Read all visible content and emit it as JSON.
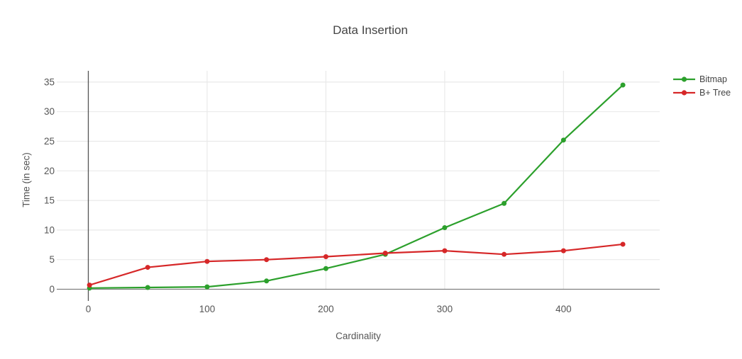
{
  "title": "Data Insertion",
  "chart_data": {
    "type": "line",
    "title": "Data Insertion",
    "xlabel": "Cardinality",
    "ylabel": "Time (in sec)",
    "x": [
      1,
      50,
      100,
      150,
      200,
      250,
      300,
      350,
      400,
      450
    ],
    "series": [
      {
        "name": "Bitmap",
        "color": "#2ca02c",
        "values": [
          0.2,
          0.3,
          0.4,
          1.4,
          3.5,
          5.9,
          10.4,
          14.5,
          25.2,
          34.5
        ]
      },
      {
        "name": "B+ Tree",
        "color": "#d62728",
        "values": [
          0.7,
          3.7,
          4.7,
          5.0,
          5.5,
          6.1,
          6.5,
          5.9,
          6.5,
          7.6
        ]
      }
    ],
    "x_ticks": [
      0,
      100,
      200,
      300,
      400
    ],
    "y_ticks": [
      0,
      5,
      10,
      15,
      20,
      25,
      30,
      35
    ],
    "xlim": [
      0,
      481
    ],
    "ylim": [
      0,
      36.9
    ],
    "grid": true,
    "legend_position": "top-right"
  },
  "colors": {
    "background": "#ffffff",
    "gridline": "#e9e9e9",
    "zero_line": "#808080",
    "axis_line": "#545454",
    "tick_label": "#555555",
    "title_text": "#444444"
  }
}
